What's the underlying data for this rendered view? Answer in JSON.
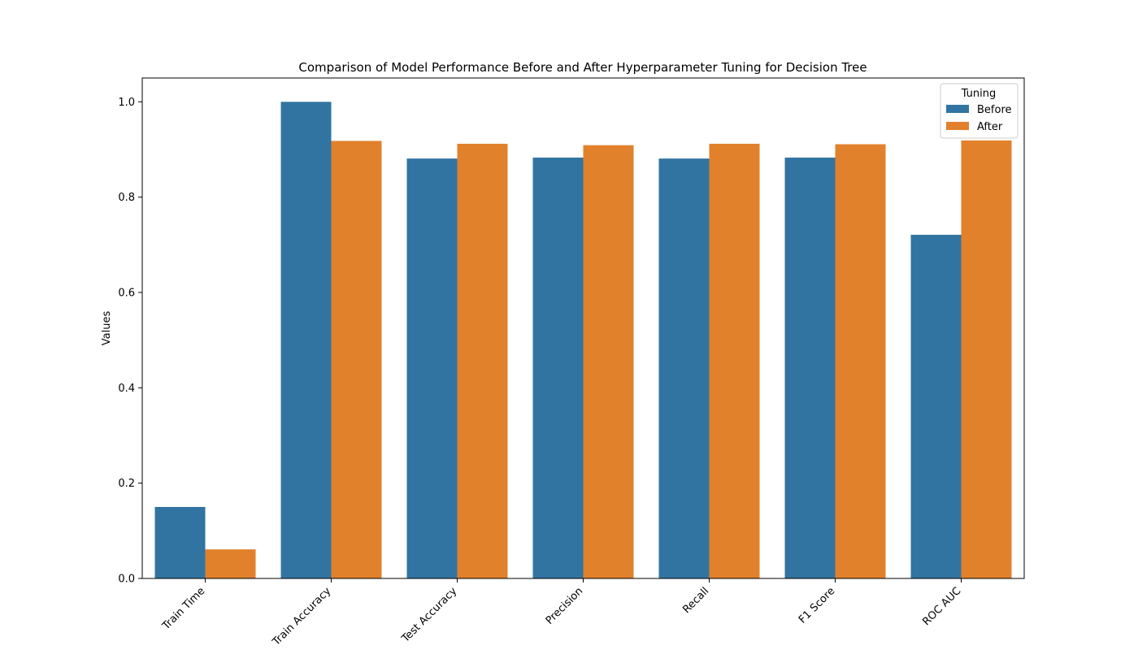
{
  "chart_data": {
    "type": "bar",
    "title": "Comparison of Model Performance Before and After Hyperparameter Tuning for Decision Tree",
    "xlabel": "",
    "ylabel": "Values",
    "categories": [
      "Train Time",
      "Train Accuracy",
      "Test Accuracy",
      "Precision",
      "Recall",
      "F1 Score",
      "ROC AUC"
    ],
    "series": [
      {
        "name": "Before",
        "color": "#3274a1",
        "values": [
          0.15,
          1.0,
          0.881,
          0.883,
          0.881,
          0.883,
          0.721
        ]
      },
      {
        "name": "After",
        "color": "#e1812c",
        "values": [
          0.061,
          0.918,
          0.912,
          0.909,
          0.912,
          0.911,
          0.919
        ]
      }
    ],
    "ylim": [
      0,
      1.05
    ],
    "yticks": [
      "0.0",
      "0.2",
      "0.4",
      "0.6",
      "0.8",
      "1.0"
    ],
    "grid": false,
    "legend": {
      "title": "Tuning",
      "position": "top-right"
    }
  }
}
